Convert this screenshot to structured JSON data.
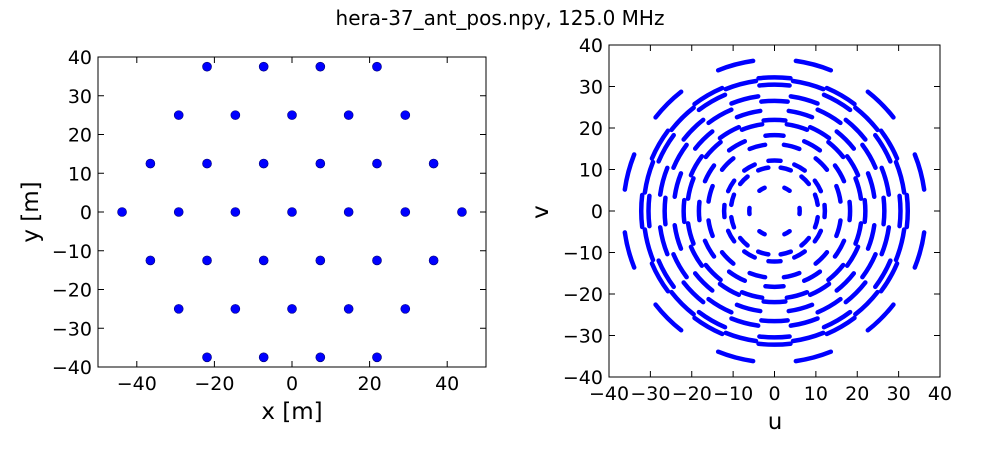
{
  "suptitle": "hera-37_ant_pos.npy, 125.0 MHz",
  "marker_color": "#0000ff",
  "chart_data": [
    {
      "type": "scatter",
      "xlabel": "x [m]",
      "ylabel": "y [m]",
      "xlim": [
        -50,
        50
      ],
      "ylim": [
        -40,
        40
      ],
      "xticks": [
        -40,
        -20,
        0,
        20,
        40
      ],
      "yticks": [
        -40,
        -30,
        -20,
        -10,
        0,
        10,
        20,
        30,
        40
      ],
      "xtick_labels": [
        "−40",
        "−20",
        "0",
        "20",
        "40"
      ],
      "ytick_labels": [
        "−40",
        "−30",
        "−20",
        "−10",
        "0",
        "10",
        "20",
        "30",
        "40"
      ],
      "points": [
        {
          "x": -21.9,
          "y": 37.5
        },
        {
          "x": -7.3,
          "y": 37.5
        },
        {
          "x": 7.3,
          "y": 37.5
        },
        {
          "x": 21.9,
          "y": 37.5
        },
        {
          "x": -29.2,
          "y": 25.0
        },
        {
          "x": -14.6,
          "y": 25.0
        },
        {
          "x": 0.0,
          "y": 25.0
        },
        {
          "x": 14.6,
          "y": 25.0
        },
        {
          "x": 29.2,
          "y": 25.0
        },
        {
          "x": -36.5,
          "y": 12.5
        },
        {
          "x": -21.9,
          "y": 12.5
        },
        {
          "x": -7.3,
          "y": 12.5
        },
        {
          "x": 7.3,
          "y": 12.5
        },
        {
          "x": 21.9,
          "y": 12.5
        },
        {
          "x": 36.5,
          "y": 12.5
        },
        {
          "x": -43.8,
          "y": 0.0
        },
        {
          "x": -29.2,
          "y": 0.0
        },
        {
          "x": -14.6,
          "y": 0.0
        },
        {
          "x": 0.0,
          "y": 0.0
        },
        {
          "x": 14.6,
          "y": 0.0
        },
        {
          "x": 29.2,
          "y": 0.0
        },
        {
          "x": 43.8,
          "y": 0.0
        },
        {
          "x": -36.5,
          "y": -12.5
        },
        {
          "x": -21.9,
          "y": -12.5
        },
        {
          "x": -7.3,
          "y": -12.5
        },
        {
          "x": 7.3,
          "y": -12.5
        },
        {
          "x": 21.9,
          "y": -12.5
        },
        {
          "x": 36.5,
          "y": -12.5
        },
        {
          "x": -29.2,
          "y": -25.0
        },
        {
          "x": -14.6,
          "y": -25.0
        },
        {
          "x": 0.0,
          "y": -25.0
        },
        {
          "x": 14.6,
          "y": -25.0
        },
        {
          "x": 29.2,
          "y": -25.0
        },
        {
          "x": -21.9,
          "y": -37.5
        },
        {
          "x": -7.3,
          "y": -37.5
        },
        {
          "x": 7.3,
          "y": -37.5
        },
        {
          "x": 21.9,
          "y": -37.5
        }
      ]
    },
    {
      "type": "scatter",
      "xlabel": "u",
      "ylabel": "v",
      "xlim": [
        -40,
        40
      ],
      "ylim": [
        -40,
        40
      ],
      "xticks": [
        -40,
        -30,
        -20,
        -10,
        0,
        10,
        20,
        30,
        40
      ],
      "yticks": [
        -40,
        -30,
        -20,
        -10,
        0,
        10,
        20,
        30,
        40
      ],
      "xtick_labels": [
        "−40",
        "−30",
        "−20",
        "−10",
        "0",
        "10",
        "20",
        "30",
        "40"
      ],
      "ytick_labels": [
        "−40",
        "−30",
        "−20",
        "−10",
        "0",
        "10",
        "20",
        "30",
        "40"
      ],
      "arcs": [
        {
          "radius": 6.09
        },
        {
          "radius": 10.55
        },
        {
          "radius": 12.18
        },
        {
          "radius": 16.11
        },
        {
          "radius": 18.27
        },
        {
          "radius": 21.1
        },
        {
          "radius": 21.96
        },
        {
          "radius": 24.36
        },
        {
          "radius": 26.55
        },
        {
          "radius": 27.91
        },
        {
          "radius": 30.45
        },
        {
          "radius": 31.65
        },
        {
          "radius": 32.21
        },
        {
          "radius": 36.54
        }
      ]
    }
  ]
}
